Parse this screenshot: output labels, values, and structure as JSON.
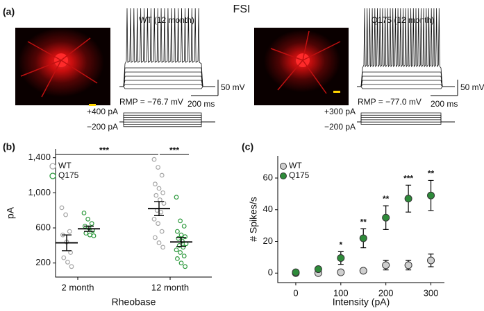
{
  "title": "FSI",
  "panel_a": {
    "label": "(a)",
    "left": {
      "title": "WT (12 month)",
      "rmp": "RMP = −76.7 mV",
      "voltage_scale": "50 mV",
      "time_scale": "200 ms",
      "stim_high": "+400 pA",
      "stim_low": "−200 pA"
    },
    "right": {
      "title": "Q175 (12 month)",
      "rmp": "RMP = −77.0 mV",
      "voltage_scale": "50 mV",
      "time_scale": "200 ms",
      "stim_high": "+300 pA",
      "stim_low": "−200 pA"
    }
  },
  "chart_data": [
    {
      "type": "strip",
      "panel": "(b)",
      "ylabel": "pA",
      "xlabel": "Rheobase",
      "categories": [
        "2 month",
        "12 month"
      ],
      "ylim": [
        40,
        1500
      ],
      "yticks": [
        200,
        600,
        {
          "value": 1000,
          "label": "1,000"
        },
        {
          "value": 1400,
          "label": "1,400"
        }
      ],
      "significance": [
        "***",
        "***"
      ],
      "legend": "top-left",
      "series": [
        {
          "name": "WT",
          "color": "#a6a6a6",
          "values": [
            430,
            820
          ],
          "errors": [
            90,
            80
          ],
          "points": [
            [
              830,
              750,
              560,
              520,
              440,
              320,
              260,
              210,
              160
            ],
            [
              1380,
              1290,
              1200,
              1100,
              1050,
              1000,
              970,
              920,
              880,
              800,
              780,
              700,
              650,
              560,
              490,
              430,
              380
            ]
          ]
        },
        {
          "name": "Q175",
          "color": "#2e9a3e",
          "values": [
            590,
            440
          ],
          "errors": [
            30,
            50
          ],
          "points": [
            [
              770,
              700,
              650,
              620,
              600,
              570,
              540,
              520,
              510
            ],
            [
              950,
              680,
              620,
              560,
              520,
              500,
              480,
              450,
              420,
              400,
              380,
              350,
              320,
              280,
              250,
              200,
              160
            ]
          ]
        }
      ]
    },
    {
      "type": "errorbar",
      "panel": "(c)",
      "ylabel": "# Spikes/s",
      "xlabel": "Intensity (pA)",
      "x": [
        0,
        50,
        100,
        150,
        200,
        250,
        300
      ],
      "xlim": [
        -40,
        330
      ],
      "xticks": [
        0,
        100,
        200,
        300
      ],
      "ylim": [
        -6,
        74
      ],
      "yticks": [
        0,
        20,
        40,
        60
      ],
      "legend": "top-left",
      "significance": [
        {
          "x": 100,
          "label": "*"
        },
        {
          "x": 150,
          "label": "**"
        },
        {
          "x": 200,
          "label": "**"
        },
        {
          "x": 250,
          "label": "***"
        },
        {
          "x": 300,
          "label": "**"
        }
      ],
      "series": [
        {
          "name": "WT",
          "color": "#cfcfcf",
          "values": [
            0,
            0,
            0.5,
            1.5,
            5,
            5,
            8
          ],
          "errors": [
            0,
            0,
            0,
            0,
            3,
            3,
            4
          ]
        },
        {
          "name": "Q175",
          "color": "#2e8b3a",
          "values": [
            0.5,
            2.5,
            9.5,
            22,
            35,
            47,
            49
          ],
          "errors": [
            1,
            1,
            4,
            6,
            7.5,
            8.5,
            9.5
          ]
        }
      ]
    }
  ]
}
